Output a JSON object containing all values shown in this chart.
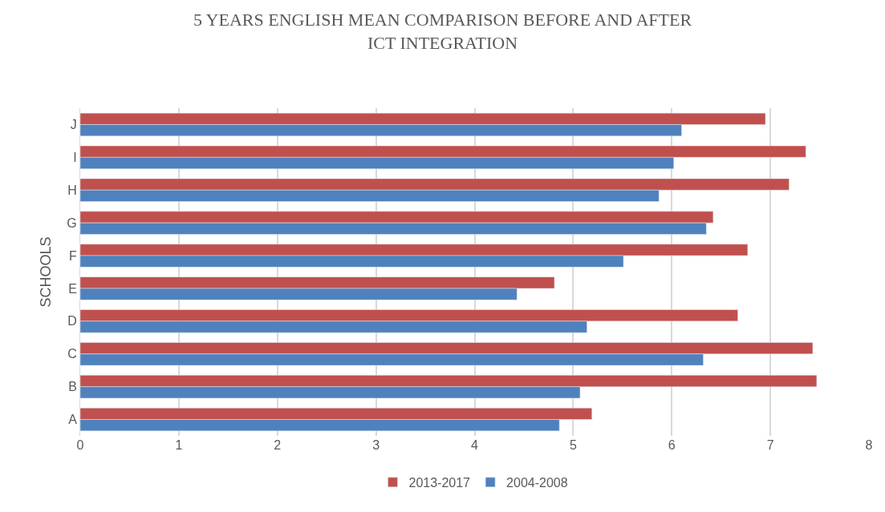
{
  "chart_data": {
    "type": "bar",
    "orientation": "horizontal",
    "title": "5 YEARS ENGLISH MEAN COMPARISON BEFORE AND AFTER ICT INTEGRATION",
    "ylabel": "SCHOOLS",
    "categories": [
      "J",
      "I",
      "H",
      "G",
      "F",
      "E",
      "D",
      "C",
      "B",
      "A"
    ],
    "series": [
      {
        "name": "2013-2017",
        "color": "#c0504d",
        "values": [
          6.95,
          7.36,
          7.19,
          6.42,
          6.77,
          4.81,
          6.67,
          7.43,
          7.47,
          5.19
        ]
      },
      {
        "name": "2004-2008",
        "color": "#4f81bd",
        "values": [
          6.1,
          6.02,
          5.87,
          6.35,
          5.51,
          4.43,
          5.14,
          6.32,
          5.07,
          4.86
        ]
      }
    ],
    "xlim": [
      0,
      8
    ],
    "xticks": [
      0,
      1,
      2,
      3,
      4,
      5,
      6,
      7,
      8
    ],
    "grid": "x",
    "legend": "bottom"
  }
}
